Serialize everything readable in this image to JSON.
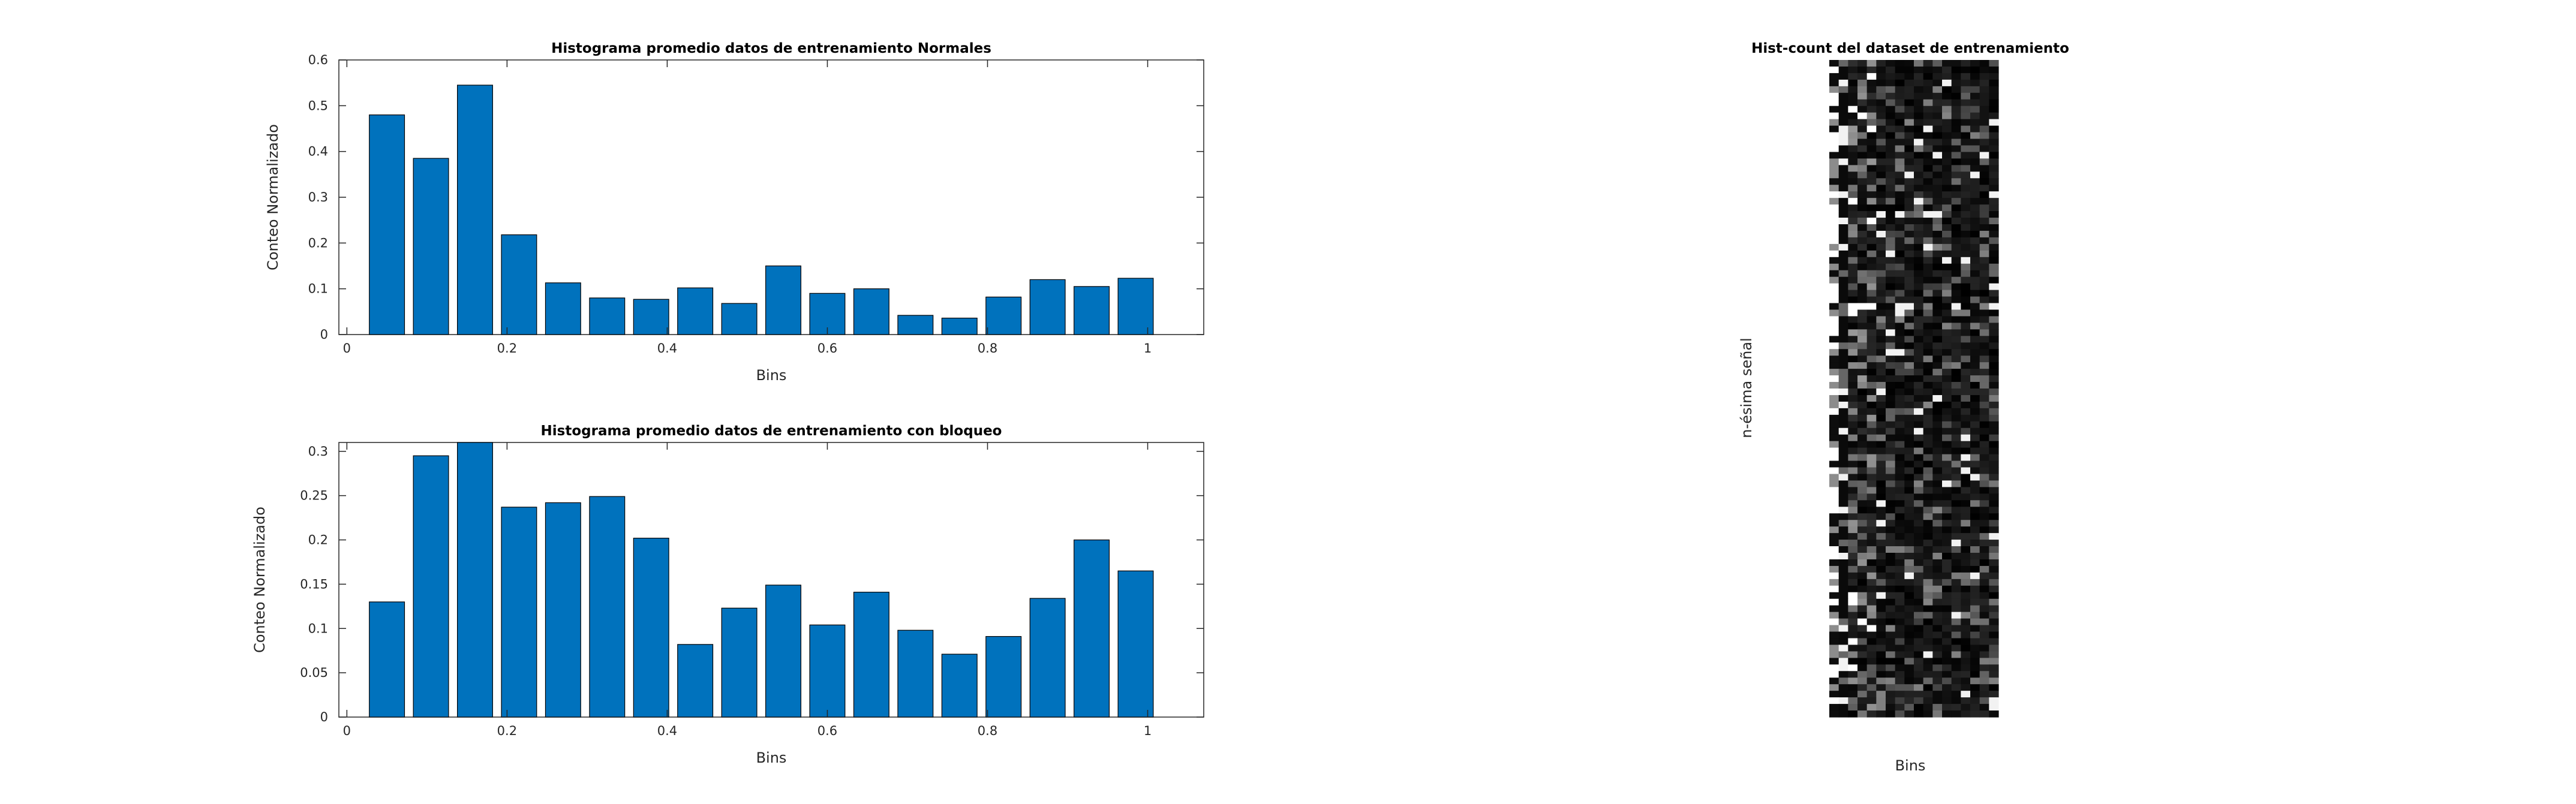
{
  "chart_data": [
    {
      "type": "bar",
      "title": "Histograma promedio datos de entrenamiento Normales",
      "xlabel": "Bins",
      "ylabel": "Conteo Normalizado",
      "x": [
        0.05,
        0.105,
        0.16,
        0.215,
        0.27,
        0.325,
        0.38,
        0.435,
        0.49,
        0.545,
        0.6,
        0.655,
        0.71,
        0.765,
        0.82,
        0.875,
        0.93,
        0.985
      ],
      "values": [
        0.48,
        0.385,
        0.545,
        0.218,
        0.113,
        0.08,
        0.077,
        0.102,
        0.068,
        0.15,
        0.09,
        0.1,
        0.042,
        0.036,
        0.082,
        0.12,
        0.105,
        0.123
      ],
      "xlim": [
        -0.01,
        1.07
      ],
      "ylim": [
        0,
        0.6
      ],
      "xticks": [
        "0",
        "0.2",
        "0.4",
        "0.6",
        "0.8",
        "1"
      ],
      "yticks": [
        "0",
        "0.1",
        "0.2",
        "0.3",
        "0.4",
        "0.5",
        "0.6"
      ],
      "color": "#0072BD",
      "grid": false
    },
    {
      "type": "bar",
      "title": "Histograma promedio datos de entrenamiento con bloqueo",
      "xlabel": "Bins",
      "ylabel": "Conteo Normalizado",
      "x": [
        0.05,
        0.105,
        0.16,
        0.215,
        0.27,
        0.325,
        0.38,
        0.435,
        0.49,
        0.545,
        0.6,
        0.655,
        0.71,
        0.765,
        0.82,
        0.875,
        0.93,
        0.985
      ],
      "values": [
        0.13,
        0.295,
        0.31,
        0.237,
        0.242,
        0.249,
        0.202,
        0.082,
        0.123,
        0.149,
        0.104,
        0.141,
        0.098,
        0.071,
        0.091,
        0.134,
        0.2,
        0.165
      ],
      "xlim": [
        -0.01,
        1.07
      ],
      "ylim": [
        0,
        0.31
      ],
      "xticks": [
        "0",
        "0.2",
        "0.4",
        "0.6",
        "0.8",
        "1"
      ],
      "yticks": [
        "0",
        "0.05",
        "0.1",
        "0.15",
        "0.2",
        "0.25",
        "0.3"
      ],
      "color": "#0072BD",
      "grid": false
    },
    {
      "type": "heatmap",
      "title": "Hist-count del dataset de entrenamiento",
      "xlabel": "Bins",
      "ylabel": "n-ésima señal",
      "colormap": "gray",
      "columns": 18,
      "rows": 100,
      "note_values": "intensity pattern of individual cells not legible; mostly dark with bright first columns"
    }
  ]
}
